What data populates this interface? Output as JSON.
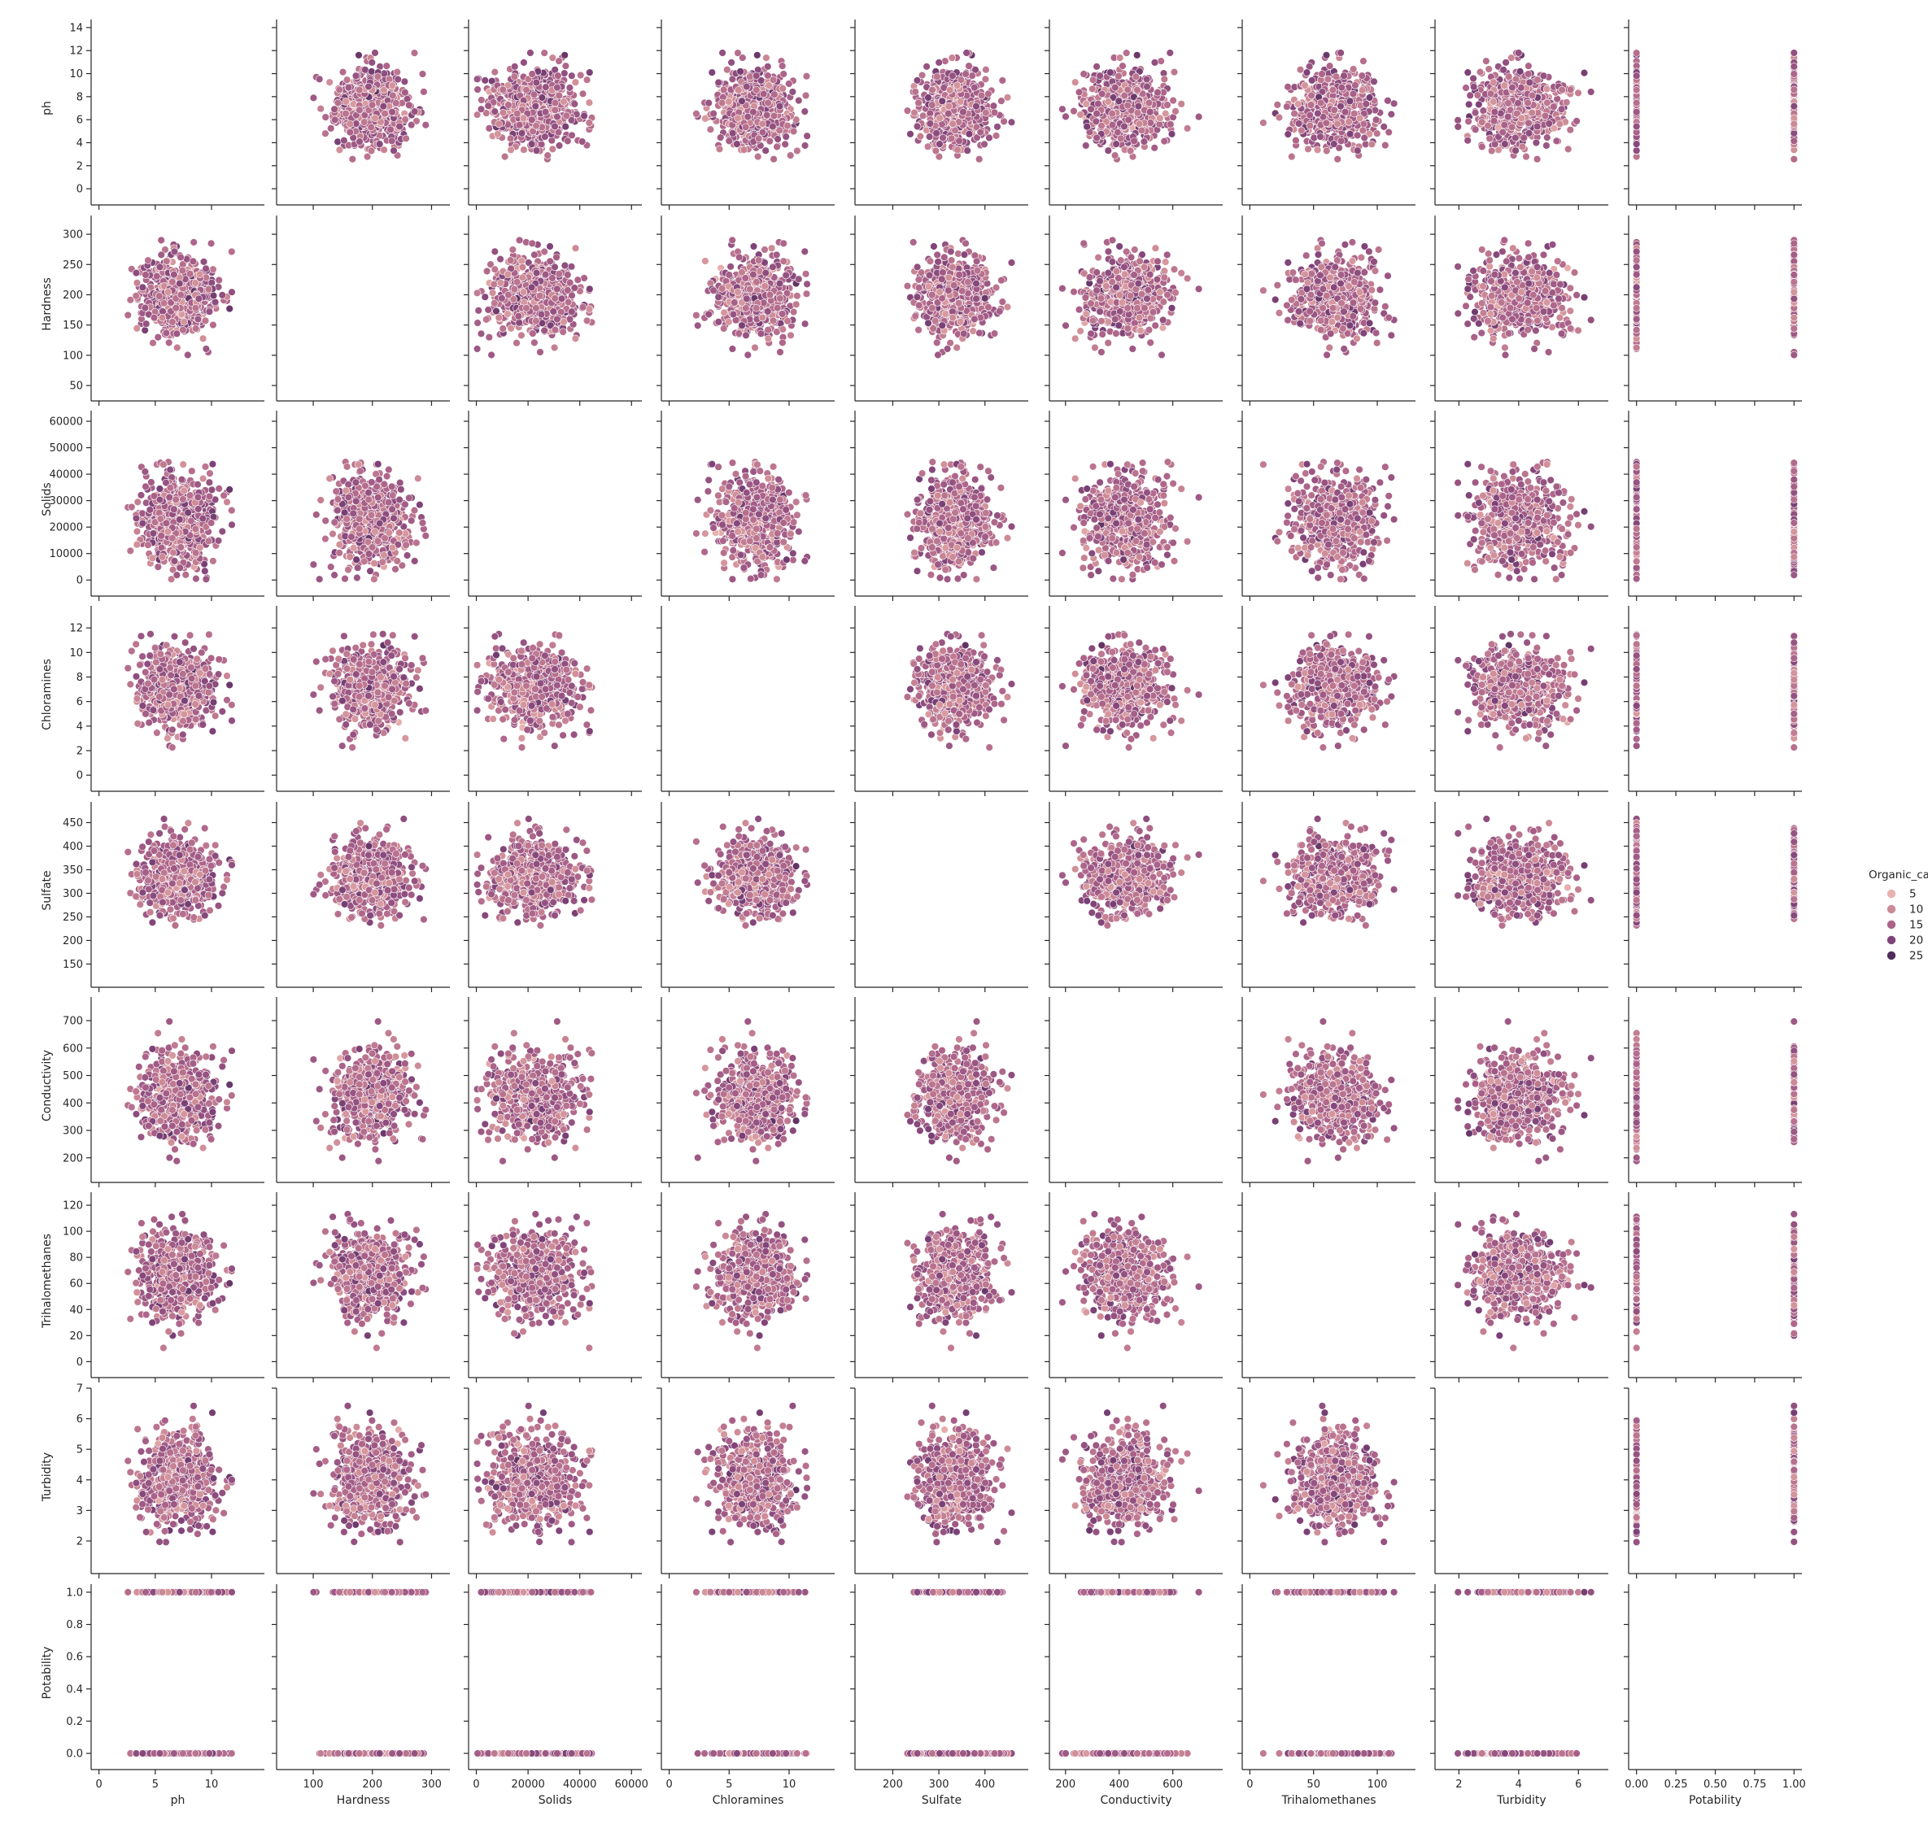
{
  "chart_data": {
    "type": "scatter",
    "title": "",
    "variables": [
      "ph",
      "Hardness",
      "Solids",
      "Chloramines",
      "Sulfate",
      "Conductivity",
      "Trihalomethanes",
      "Turbidity",
      "Potability"
    ],
    "ticks": [
      [
        "0",
        "5",
        "10"
      ],
      [
        "100",
        "200",
        "300"
      ],
      [
        "0",
        "20000",
        "40000",
        "60000"
      ],
      [
        "0",
        "5",
        "10"
      ],
      [
        "200",
        "300",
        "400"
      ],
      [
        "200",
        "400",
        "600"
      ],
      [
        "0",
        "50",
        "100"
      ],
      [
        "2",
        "4",
        "6"
      ],
      [
        "0.00",
        "0.25",
        "0.50",
        "0.75",
        "1.00"
      ]
    ],
    "y_ticks": [
      [
        "0",
        "2",
        "4",
        "6",
        "8",
        "10",
        "12",
        "14"
      ],
      [
        "50",
        "100",
        "150",
        "200",
        "250",
        "300"
      ],
      [
        "0",
        "10000",
        "20000",
        "30000",
        "40000",
        "50000",
        "60000"
      ],
      [
        "0",
        "2",
        "4",
        "6",
        "8",
        "10",
        "12"
      ],
      [
        "150",
        "200",
        "250",
        "300",
        "350",
        "400",
        "450"
      ],
      [
        "200",
        "300",
        "400",
        "500",
        "600",
        "700"
      ],
      [
        "0",
        "20",
        "40",
        "60",
        "80",
        "100",
        "120"
      ],
      [
        "2",
        "3",
        "4",
        "5",
        "6",
        "7"
      ],
      [
        "0.0",
        "0.2",
        "0.4",
        "0.6",
        "0.8",
        "1.0"
      ]
    ],
    "ranges": [
      [
        -0.7,
        14.7
      ],
      [
        38,
        331
      ],
      [
        -3000,
        64000
      ],
      [
        -0.65,
        13.8
      ],
      [
        118,
        494
      ],
      [
        140,
        786
      ],
      [
        -6,
        130
      ],
      [
        1.2,
        7.0
      ],
      [
        -0.05,
        1.05
      ]
    ],
    "centers": [
      7.08,
      196.4,
      22014,
      7.12,
      333.8,
      426.2,
      66.4,
      3.97,
      0.39
    ],
    "spreads": [
      1.59,
      32.9,
      8769,
      1.58,
      41.4,
      80.8,
      16.2,
      0.78,
      0.49
    ],
    "data_limits": [
      [
        0,
        14
      ],
      [
        47,
        323
      ],
      [
        320,
        61227
      ],
      [
        0.35,
        13.1
      ],
      [
        129,
        481
      ],
      [
        181,
        753
      ],
      [
        0.74,
        124
      ],
      [
        1.45,
        6.74
      ],
      [
        0,
        1
      ]
    ],
    "diagonal": "empty",
    "hue": {
      "name": "Organic_carbon",
      "legend_title": "Organic_carbon",
      "legend_values": [
        "5",
        "10",
        "15",
        "20",
        "25"
      ],
      "colors": [
        "#e8b2ae",
        "#cd8a96",
        "#ab6289",
        "#7f4379",
        "#4f2c5a"
      ],
      "range": [
        2.2,
        28.3
      ]
    },
    "point_color_edge": "#ffffff",
    "grid": false,
    "legend_position": "right"
  }
}
